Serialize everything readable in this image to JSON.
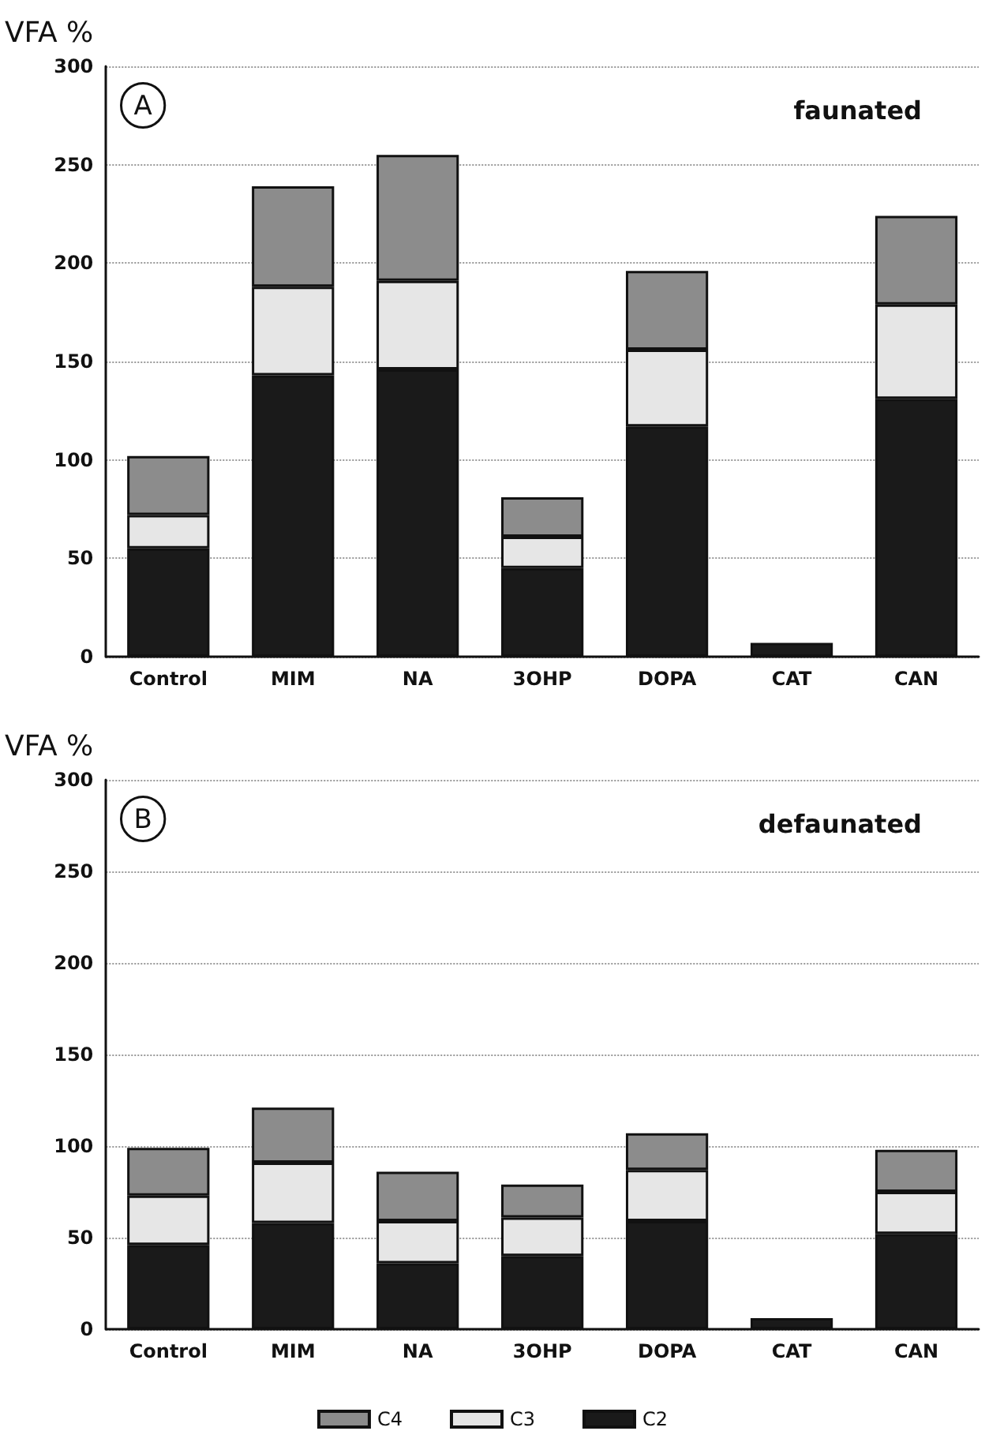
{
  "chart_data": [
    {
      "type": "bar",
      "stacked": true,
      "ylabel": "VFA %",
      "annotations": [
        "A",
        "faunated"
      ],
      "categories": [
        "Control",
        "MIM",
        "NA",
        "3OHP",
        "DOPA",
        "CAT",
        "CAN"
      ],
      "ylim": [
        0,
        300
      ],
      "yticks": [
        0,
        50,
        100,
        150,
        200,
        250,
        300
      ],
      "grid": "y",
      "legend": false,
      "series": [
        {
          "color": "#1a1a1a",
          "values": [
            55,
            143,
            146,
            45,
            117,
            7,
            131
          ]
        },
        {
          "color": "#e6e6e6",
          "values": [
            17,
            45,
            45,
            16,
            39,
            null,
            48
          ]
        },
        {
          "color": "#8c8c8c",
          "values": [
            30,
            51,
            64,
            20,
            40,
            null,
            45
          ]
        }
      ]
    },
    {
      "type": "bar",
      "stacked": true,
      "ylabel": "VFA %",
      "annotations": [
        "B",
        "defaunated"
      ],
      "categories": [
        "Control",
        "MIM",
        "NA",
        "3OHP",
        "DOPA",
        "CAT",
        "CAN"
      ],
      "ylim": [
        0,
        300
      ],
      "yticks": [
        0,
        50,
        100,
        150,
        200,
        250,
        300
      ],
      "grid": "y",
      "legend": "bottom",
      "series": [
        {
          "name": "C2",
          "color": "#1a1a1a",
          "values": [
            46,
            58,
            36,
            40,
            59,
            6,
            52
          ]
        },
        {
          "name": "C3",
          "color": "#e6e6e6",
          "values": [
            27,
            33,
            23,
            21,
            28,
            null,
            23
          ]
        },
        {
          "name": "C4",
          "color": "#8c8c8c",
          "values": [
            26,
            30,
            27,
            18,
            20,
            null,
            23
          ]
        }
      ]
    }
  ]
}
